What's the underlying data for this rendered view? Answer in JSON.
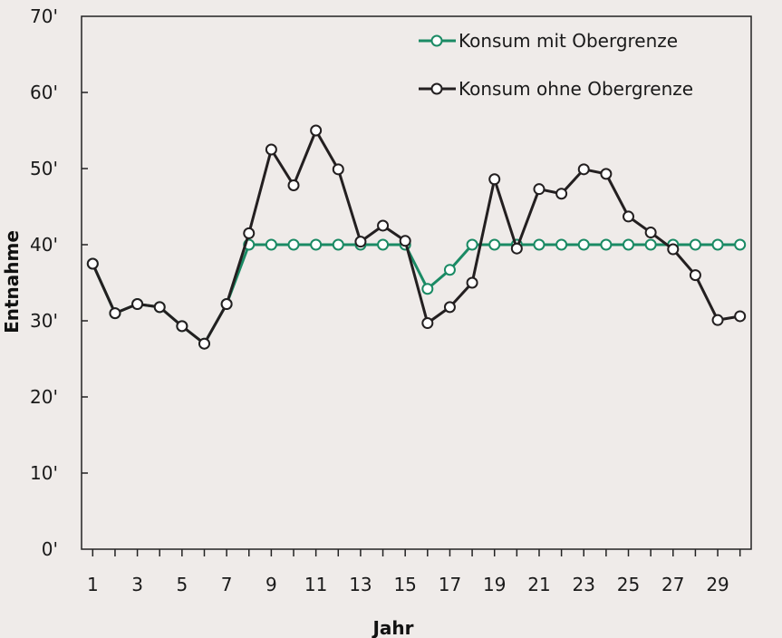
{
  "chart_data": {
    "type": "line",
    "title": "",
    "xlabel": "Jahr",
    "ylabel": "Entnahme",
    "x": [
      1,
      2,
      3,
      4,
      5,
      6,
      7,
      8,
      9,
      10,
      11,
      12,
      13,
      14,
      15,
      16,
      17,
      18,
      19,
      20,
      21,
      22,
      23,
      24,
      25,
      26,
      27,
      28,
      29,
      30
    ],
    "xlim": [
      0.5,
      30.5
    ],
    "ylim": [
      0,
      70
    ],
    "x_tick_labels": [
      "1",
      "3",
      "5",
      "7",
      "9",
      "11",
      "13",
      "15",
      "17",
      "19",
      "21",
      "23",
      "25",
      "27",
      "29"
    ],
    "y_tick_labels": [
      "0'",
      "10'",
      "20'",
      "30'",
      "40'",
      "50'",
      "60'",
      "70'"
    ],
    "grid": false,
    "legend_position": "top-right",
    "series": [
      {
        "name": "Konsum mit Obergrenze",
        "color": "#1a8a64",
        "values": [
          37.5,
          31,
          32.2,
          31.8,
          29.3,
          27,
          32.2,
          40,
          40,
          40,
          40,
          40,
          40,
          40,
          40,
          34.2,
          36.7,
          40,
          40,
          40,
          40,
          40,
          40,
          40,
          40,
          40,
          40,
          40,
          40,
          40
        ]
      },
      {
        "name": "Konsum ohne Obergrenze",
        "color": "#231f20",
        "values": [
          37.5,
          31,
          32.2,
          31.8,
          29.3,
          27,
          32.2,
          41.5,
          52.5,
          47.8,
          55,
          49.9,
          40.4,
          42.5,
          40.5,
          29.7,
          31.8,
          35,
          48.6,
          39.5,
          47.3,
          46.7,
          49.9,
          49.3,
          43.7,
          41.6,
          39.4,
          36,
          30.1,
          30.6
        ]
      }
    ]
  }
}
